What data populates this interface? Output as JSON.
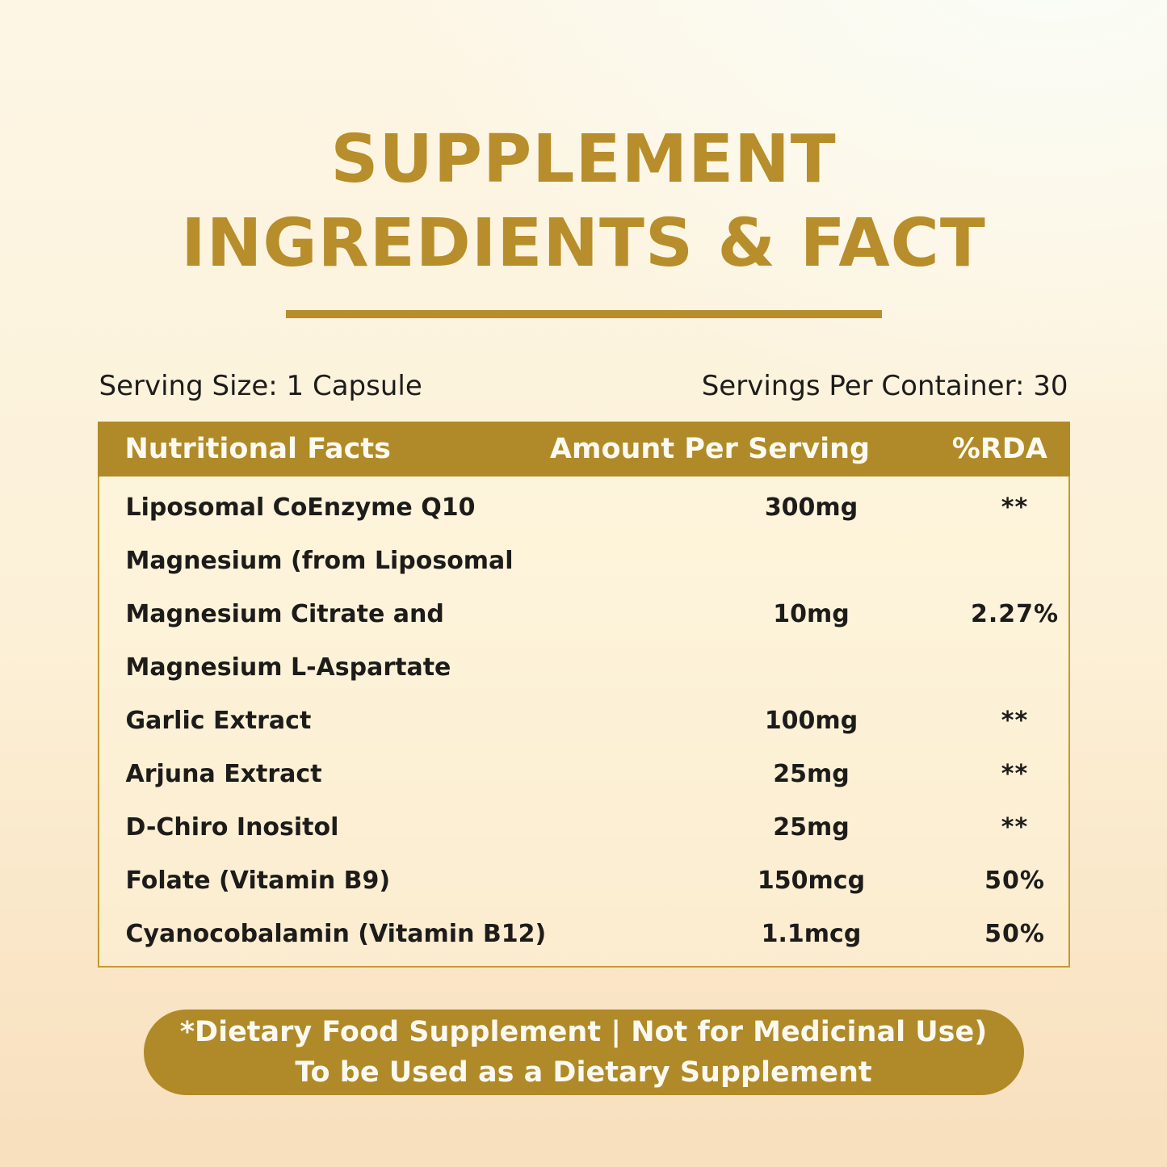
{
  "header": {
    "title_line1": "SUPPLEMENT",
    "title_line2": "INGREDIENTS & FACT"
  },
  "serving": {
    "size_label": "Serving Size: 1 Capsule",
    "per_container_label": "Servings Per Container: 30"
  },
  "table": {
    "headers": [
      "Nutritional Facts",
      "Amount Per Serving",
      "%RDA"
    ],
    "rows": [
      {
        "name": "Liposomal CoEnzyme Q10",
        "amount": "300mg",
        "rda": "**"
      },
      {
        "name": "Magnesium (from Liposomal",
        "amount": "",
        "rda": ""
      },
      {
        "name": "Magnesium Citrate and",
        "amount": "10mg",
        "rda": "2.27%"
      },
      {
        "name": "Magnesium L-Aspartate",
        "amount": "",
        "rda": ""
      },
      {
        "name": "Garlic Extract",
        "amount": "100mg",
        "rda": "**"
      },
      {
        "name": "Arjuna Extract",
        "amount": "25mg",
        "rda": "**"
      },
      {
        "name": "D-Chiro Inositol",
        "amount": "25mg",
        "rda": "**"
      },
      {
        "name": "Folate (Vitamin B9)",
        "amount": "150mcg",
        "rda": "50%"
      },
      {
        "name": "Cyanocobalamin (Vitamin B12)",
        "amount": "1.1mcg",
        "rda": "50%"
      }
    ]
  },
  "footer": {
    "line1": "*Dietary Food Supplement | Not for Medicinal Use)",
    "line2": "To be Used as a Dietary Supplement"
  },
  "colors": {
    "gold": "#B78E2B",
    "band_gold": "#B08A28",
    "border_gold": "#C39A33",
    "text_dark": "#1D1C1A",
    "light_text": "#FDFAF1"
  }
}
